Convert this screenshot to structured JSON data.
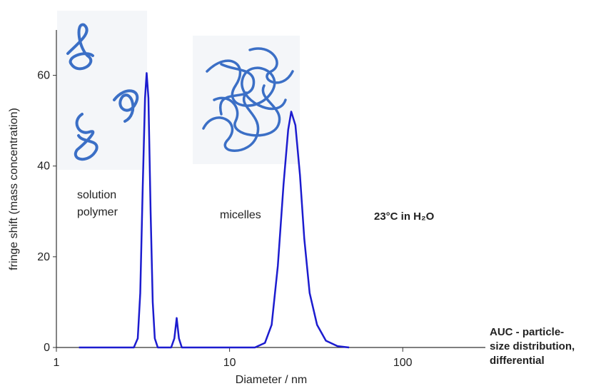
{
  "chart_data": {
    "type": "line",
    "x_label": "Diameter / nm",
    "y_label": "fringe shift (mass concentration)",
    "x": [
      1.35,
      2.8,
      2.95,
      3.05,
      3.15,
      3.25,
      3.32,
      3.4,
      3.5,
      3.6,
      3.7,
      3.85,
      4.6,
      4.8,
      4.95,
      5.1,
      5.3,
      14,
      16,
      17.5,
      19,
      20.5,
      21.8,
      22.7,
      24,
      25.5,
      27,
      29,
      32,
      36,
      42,
      49
    ],
    "values": [
      0,
      0,
      2,
      12,
      35,
      55,
      60.5,
      55,
      30,
      10,
      2,
      0,
      0,
      2,
      6.5,
      2,
      0,
      0,
      1,
      5,
      18,
      36,
      48,
      52,
      49,
      38,
      24,
      12,
      5,
      1.5,
      0.3,
      0
    ],
    "color": "#1c1ccf",
    "x_log": true,
    "xlim": [
      1,
      300
    ],
    "xticks": [
      1,
      10,
      100
    ],
    "ylim": [
      0,
      70
    ],
    "yticks": [
      0,
      20,
      40,
      60
    ],
    "annotations": [
      {
        "lines": [
          "solution",
          "polymer"
        ]
      },
      {
        "lines": [
          "micelles"
        ]
      },
      {
        "lines": [
          "23°C in H₂O"
        ]
      },
      {
        "lines": [
          "AUC - particle-",
          "size distribution,",
          "differential"
        ]
      }
    ]
  }
}
